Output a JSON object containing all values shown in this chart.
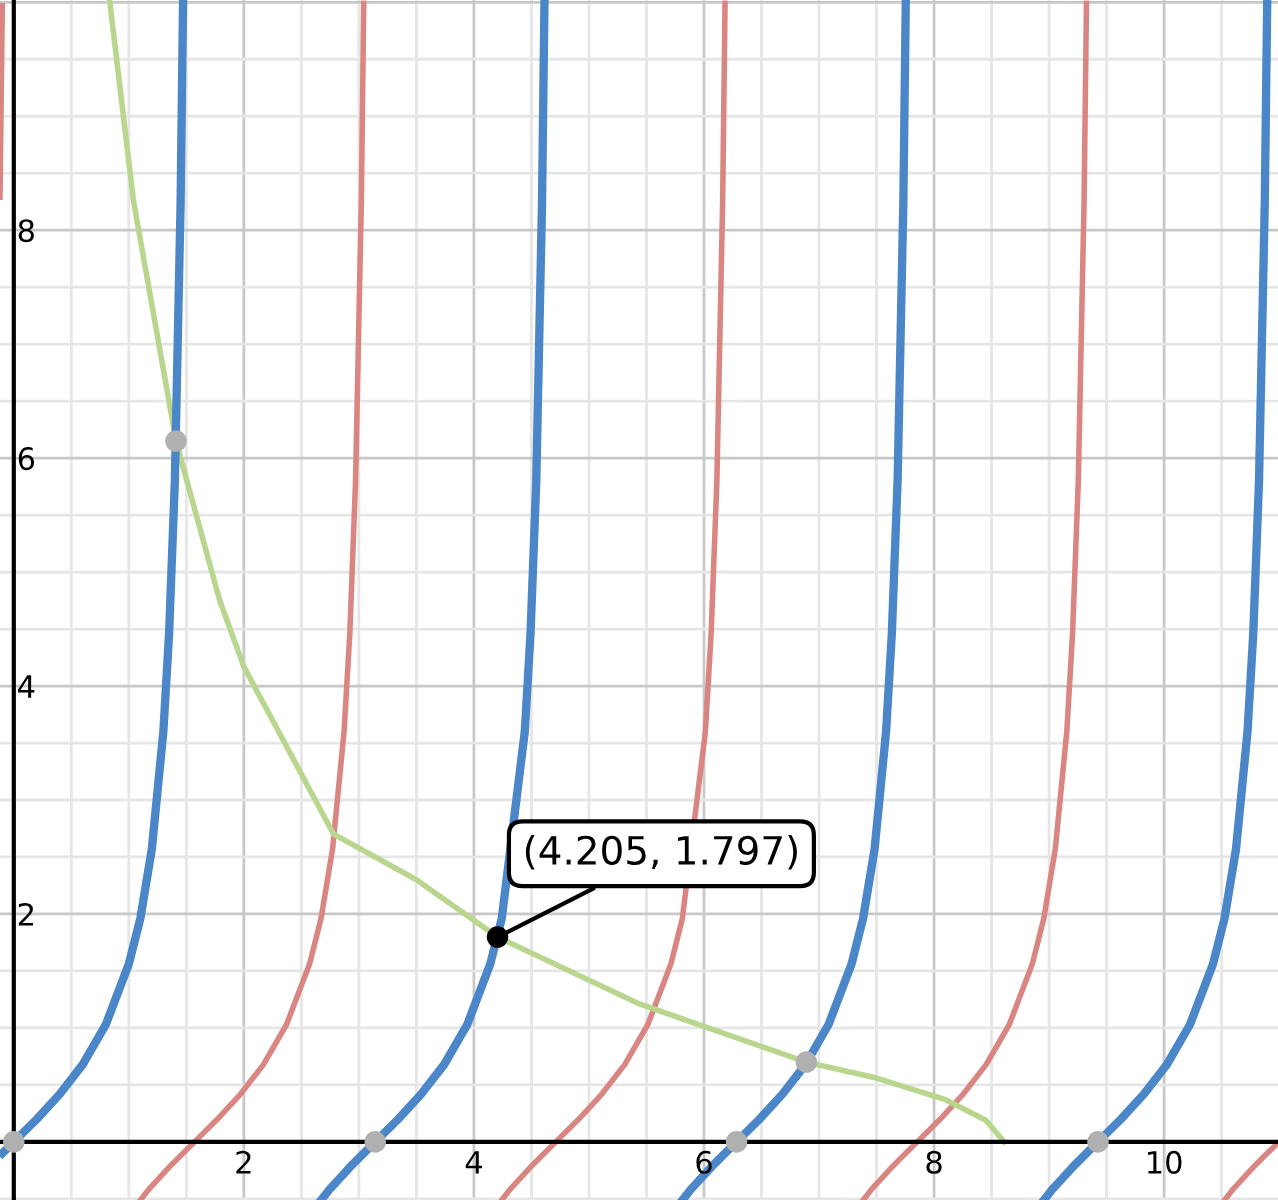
{
  "chart_data": {
    "type": "line",
    "xlim": [
      -0.12,
      10.99
    ],
    "ylim": [
      -0.51,
      10.02
    ],
    "xticks": [
      {
        "value": 0,
        "label": null
      },
      {
        "value": 0.5,
        "label": null
      },
      {
        "value": 1,
        "label": null
      },
      {
        "value": 1.5,
        "label": null
      },
      2,
      {
        "value": 2.5,
        "label": null
      },
      {
        "value": 3,
        "label": null
      },
      {
        "value": 3.5,
        "label": null
      },
      4,
      {
        "value": 4.5,
        "label": null
      },
      {
        "value": 5,
        "label": null
      },
      {
        "value": 5.5,
        "label": null
      },
      6,
      {
        "value": 6.5,
        "label": null
      },
      {
        "value": 7,
        "label": null
      },
      {
        "value": 7.5,
        "label": null
      },
      8,
      {
        "value": 8.5,
        "label": null
      },
      {
        "value": 9,
        "label": null
      },
      {
        "value": 9.5,
        "label": null
      },
      10,
      {
        "value": 10.5,
        "label": null
      }
    ],
    "yticks": [
      {
        "value": -0.5,
        "label": null
      },
      {
        "value": 0,
        "label": null
      },
      {
        "value": 0.5,
        "label": null
      },
      {
        "value": 1,
        "label": null
      },
      {
        "value": 1.5,
        "label": null
      },
      2,
      {
        "value": 2.5,
        "label": null
      },
      {
        "value": 3,
        "label": null
      },
      {
        "value": 3.5,
        "label": null
      },
      4,
      {
        "value": 4.5,
        "label": null
      },
      {
        "value": 5,
        "label": null
      },
      {
        "value": 5.5,
        "label": null
      },
      6,
      {
        "value": 6.5,
        "label": null
      },
      {
        "value": 7,
        "label": null
      },
      {
        "value": 7.5,
        "label": null
      },
      8,
      {
        "value": 8.5,
        "label": null
      },
      {
        "value": 9,
        "label": null
      },
      {
        "value": 9.5,
        "label": null
      },
      {
        "value": 10,
        "label": null
      }
    ],
    "grid": true,
    "marker": "none",
    "line_style": "solid",
    "series": [
      {
        "color": "#d98682",
        "x": [
          -0.12,
          -0.1
        ],
        "values": [
          8.29,
          9.97
        ]
      },
      {
        "color": "#d98682",
        "x": [
          1.101,
          1.171,
          1.271,
          1.371,
          1.471,
          1.571,
          1.771,
          1.971,
          2.171,
          2.371,
          2.571,
          2.671,
          2.771,
          2.871,
          2.921,
          2.971,
          3.021,
          3.042
        ],
        "values": [
          -0.51,
          -0.42,
          -0.31,
          -0.2,
          -0.1,
          0,
          0.2,
          0.42,
          0.68,
          1.03,
          1.56,
          1.96,
          2.57,
          3.6,
          4.46,
          5.8,
          8.24,
          9.99
        ]
      },
      {
        "color": "#d98682",
        "x": [
          4.242,
          4.312,
          4.412,
          4.512,
          4.612,
          4.712,
          4.912,
          5.112,
          5.312,
          5.512,
          5.712,
          5.812,
          6.012,
          6.062,
          6.112,
          6.162,
          6.183
        ],
        "values": [
          -0.51,
          -0.42,
          -0.31,
          -0.2,
          -0.1,
          0,
          0.2,
          0.42,
          0.68,
          1.03,
          1.56,
          1.96,
          3.6,
          4.46,
          5.8,
          8.24,
          9.99
        ]
      },
      {
        "color": "#d98682",
        "x": [
          7.384,
          7.454,
          7.554,
          7.654,
          7.754,
          7.854,
          8.054,
          8.254,
          8.454,
          8.654,
          8.854,
          8.954,
          9.054,
          9.154,
          9.204,
          9.254,
          9.304,
          9.325
        ],
        "values": [
          -0.51,
          -0.42,
          -0.31,
          -0.2,
          -0.1,
          0,
          0.2,
          0.42,
          0.68,
          1.03,
          1.56,
          1.96,
          2.57,
          3.6,
          4.46,
          5.8,
          8.24,
          9.99
        ]
      },
      {
        "color": "#d98682",
        "x": [
          10.526,
          10.596,
          10.696,
          10.796,
          10.896,
          10.99
        ],
        "values": [
          -0.51,
          -0.42,
          -0.31,
          -0.2,
          -0.1,
          -0.01
        ]
      },
      {
        "color": "#b9d68e",
        "x": [
          0.835,
          1.04,
          1.41,
          1.79,
          2.0,
          2.78,
          3.5,
          4.205,
          5.44,
          6.89,
          7.5,
          8.1,
          8.45,
          8.61
        ],
        "values": [
          10.0,
          8.26,
          6.15,
          4.75,
          4.17,
          2.7,
          2.3,
          1.797,
          1.21,
          0.7,
          0.56,
          0.37,
          0.19,
          0.0
        ]
      },
      {
        "color": "#4a86c8",
        "x": [
          -0.1,
          0,
          0.2,
          0.4,
          0.6,
          0.8,
          1.0,
          1.1,
          1.2,
          1.3,
          1.35,
          1.4,
          1.45,
          1.471
        ],
        "values": [
          -0.1,
          0,
          0.2,
          0.42,
          0.68,
          1.03,
          1.56,
          1.96,
          2.57,
          3.6,
          4.46,
          5.8,
          8.24,
          9.99
        ]
      },
      {
        "color": "#4a86c8",
        "x": [
          2.672,
          2.742,
          2.842,
          2.942,
          3.042,
          3.142,
          3.342,
          3.542,
          3.742,
          3.942,
          4.142,
          4.242,
          4.442,
          4.492,
          4.542,
          4.592,
          4.613
        ],
        "values": [
          -0.51,
          -0.42,
          -0.31,
          -0.2,
          -0.1,
          0,
          0.2,
          0.42,
          0.68,
          1.03,
          1.56,
          1.96,
          3.6,
          4.46,
          5.8,
          8.24,
          9.99
        ]
      },
      {
        "color": "#4a86c8",
        "x": [
          5.813,
          5.883,
          5.983,
          6.083,
          6.183,
          6.283,
          6.483,
          6.683,
          6.883,
          7.083,
          7.283,
          7.383,
          7.483,
          7.583,
          7.633,
          7.683,
          7.733,
          7.754
        ],
        "values": [
          -0.51,
          -0.42,
          -0.31,
          -0.2,
          -0.1,
          0,
          0.2,
          0.42,
          0.68,
          1.03,
          1.56,
          1.96,
          2.57,
          3.6,
          4.46,
          5.8,
          8.24,
          9.99
        ]
      },
      {
        "color": "#4a86c8",
        "x": [
          8.955,
          9.025,
          9.125,
          9.225,
          9.325,
          9.425,
          9.625,
          9.825,
          10.025,
          10.225,
          10.425,
          10.525,
          10.625,
          10.725,
          10.775,
          10.825,
          10.875,
          10.896
        ],
        "values": [
          -0.51,
          -0.42,
          -0.31,
          -0.2,
          -0.1,
          0,
          0.2,
          0.42,
          0.68,
          1.03,
          1.56,
          1.96,
          2.57,
          3.6,
          4.46,
          5.8,
          8.24,
          9.99
        ]
      },
      {
        "type": "scatter",
        "marker": "circle",
        "color": "#b0b0b0",
        "x": [
          0,
          3.142,
          6.283,
          9.425,
          1.41,
          6.89
        ],
        "values": [
          0,
          0,
          0,
          0,
          6.15,
          0.7
        ]
      },
      {
        "type": "scatter",
        "marker": "circle",
        "color": "#000000",
        "x": [
          4.205
        ],
        "values": [
          1.797
        ]
      }
    ],
    "annotations": [
      {
        "text": "(4.205, 1.797)",
        "x": 4.205,
        "y": 1.797
      }
    ]
  }
}
